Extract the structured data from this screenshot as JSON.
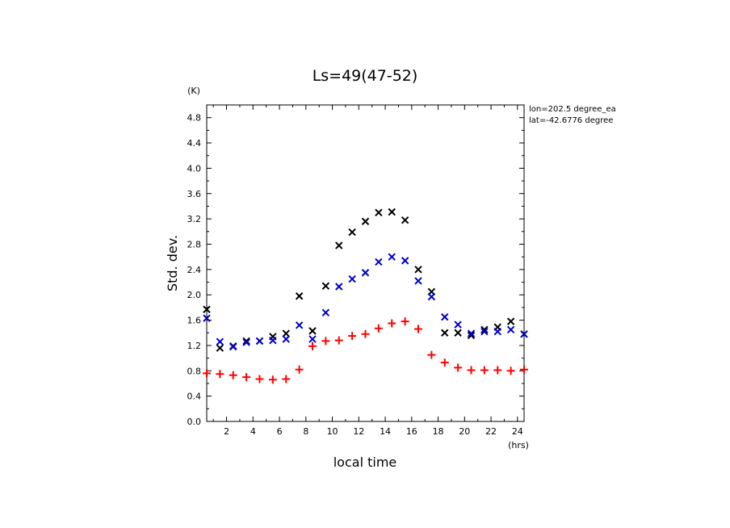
{
  "chart_data": {
    "type": "scatter",
    "title": "Ls=49(47-52)",
    "xlabel": "local time",
    "ylabel": "Std. dev.",
    "x_unit": "(hrs)",
    "y_unit": "(K)",
    "xlim": [
      0.5,
      24.5
    ],
    "ylim": [
      0.0,
      5.0
    ],
    "xticks": [
      2,
      4,
      6,
      8,
      10,
      12,
      14,
      16,
      18,
      20,
      22,
      24
    ],
    "yticks": [
      0.0,
      0.4,
      0.8,
      1.2,
      1.6,
      2.0,
      2.4,
      2.8,
      3.2,
      3.6,
      4.0,
      4.4,
      4.8
    ],
    "annotations": [
      "lon=202.5 degree_ea",
      "lat=-42.6776 degree"
    ],
    "series": [
      {
        "marker": "x",
        "color": "#000000",
        "x": [
          0.5,
          1.5,
          2.5,
          3.5,
          4.5,
          5.5,
          6.5,
          7.5,
          8.5,
          9.5,
          10.5,
          11.5,
          12.5,
          13.5,
          14.5,
          15.5,
          16.5,
          17.5,
          18.5,
          19.5,
          20.5,
          21.5,
          22.5,
          23.5,
          24.5
        ],
        "y": [
          1.77,
          1.16,
          1.19,
          1.27,
          1.27,
          1.34,
          1.39,
          1.98,
          1.43,
          2.14,
          2.78,
          2.99,
          3.16,
          3.3,
          3.31,
          3.18,
          2.4,
          2.05,
          1.4,
          1.4,
          1.36,
          1.45,
          1.49,
          1.58,
          1.38
        ]
      },
      {
        "marker": "x",
        "color": "#0000cc",
        "x": [
          0.5,
          1.5,
          2.5,
          3.5,
          4.5,
          5.5,
          6.5,
          7.5,
          8.5,
          9.5,
          10.5,
          11.5,
          12.5,
          13.5,
          14.5,
          15.5,
          16.5,
          17.5,
          18.5,
          19.5,
          20.5,
          21.5,
          22.5,
          23.5,
          24.5
        ],
        "y": [
          1.63,
          1.26,
          1.18,
          1.25,
          1.27,
          1.28,
          1.3,
          1.52,
          1.3,
          1.72,
          2.13,
          2.25,
          2.35,
          2.52,
          2.6,
          2.54,
          2.22,
          1.97,
          1.65,
          1.53,
          1.39,
          1.42,
          1.42,
          1.45,
          1.38
        ]
      },
      {
        "marker": "+",
        "color": "#ff0000",
        "x": [
          0.5,
          1.5,
          2.5,
          3.5,
          4.5,
          5.5,
          6.5,
          7.5,
          8.5,
          9.5,
          10.5,
          11.5,
          12.5,
          13.5,
          14.5,
          15.5,
          16.5,
          17.5,
          18.5,
          19.5,
          20.5,
          21.5,
          22.5,
          23.5,
          24.5
        ],
        "y": [
          0.76,
          0.75,
          0.73,
          0.7,
          0.67,
          0.66,
          0.67,
          0.82,
          1.19,
          1.27,
          1.28,
          1.35,
          1.38,
          1.47,
          1.55,
          1.58,
          1.46,
          1.05,
          0.93,
          0.85,
          0.81,
          0.81,
          0.81,
          0.8,
          0.82
        ]
      }
    ]
  }
}
